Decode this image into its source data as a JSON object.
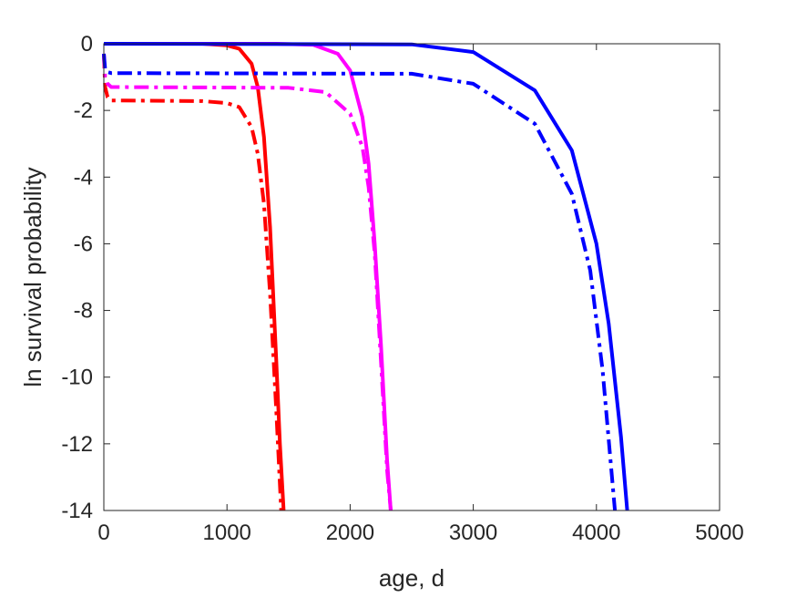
{
  "chart_data": {
    "type": "line",
    "title": "",
    "xlabel": "age, d",
    "ylabel": "ln survival probability",
    "xlim": [
      0,
      5000
    ],
    "ylim": [
      -14,
      0
    ],
    "xticks": [
      0,
      1000,
      2000,
      3000,
      4000,
      5000
    ],
    "yticks": [
      -14,
      -12,
      -10,
      -8,
      -6,
      -4,
      -2,
      0
    ],
    "xtick_labels": [
      "0",
      "1000",
      "2000",
      "3000",
      "4000",
      "5000"
    ],
    "ytick_labels": [
      "-14",
      "-12",
      "-10",
      "-8",
      "-6",
      "-4",
      "-2",
      "0"
    ],
    "grid": false,
    "legend": "none",
    "series": [
      {
        "color": "#ff0000",
        "style": "solid",
        "x": [
          0,
          800,
          1000,
          1100,
          1200,
          1250,
          1300,
          1350,
          1400,
          1430,
          1460
        ],
        "y": [
          0,
          0,
          -0.05,
          -0.15,
          -0.6,
          -1.3,
          -2.8,
          -5.5,
          -9.5,
          -12.0,
          -14.0
        ]
      },
      {
        "color": "#ff0000",
        "style": "dashdot",
        "x": [
          0,
          10,
          30,
          60,
          800,
          1000,
          1100,
          1200,
          1250,
          1300,
          1350,
          1400,
          1440
        ],
        "y": [
          -0.3,
          -1.3,
          -1.6,
          -1.7,
          -1.72,
          -1.78,
          -1.9,
          -2.5,
          -3.3,
          -4.8,
          -7.5,
          -11.0,
          -14.0
        ]
      },
      {
        "color": "#ff00ff",
        "style": "solid",
        "x": [
          0,
          1400,
          1700,
          1900,
          2000,
          2100,
          2150,
          2200,
          2250,
          2300,
          2330
        ],
        "y": [
          0,
          0,
          -0.03,
          -0.3,
          -0.8,
          -2.2,
          -3.6,
          -6.0,
          -9.0,
          -12.5,
          -14.0
        ]
      },
      {
        "color": "#ff00ff",
        "style": "dashdot",
        "x": [
          0,
          10,
          30,
          60,
          1500,
          1800,
          2000,
          2100,
          2150,
          2200,
          2250,
          2300,
          2330
        ],
        "y": [
          -0.3,
          -1.0,
          -1.2,
          -1.3,
          -1.32,
          -1.45,
          -2.1,
          -3.1,
          -4.3,
          -6.3,
          -9.5,
          -12.8,
          -14.0
        ]
      },
      {
        "color": "#0000ff",
        "style": "solid",
        "x": [
          0,
          2500,
          3000,
          3500,
          3800,
          4000,
          4100,
          4200,
          4250
        ],
        "y": [
          0,
          -0.02,
          -0.25,
          -1.4,
          -3.2,
          -6.0,
          -8.4,
          -11.8,
          -14.0
        ]
      },
      {
        "color": "#0000ff",
        "style": "dashdot",
        "x": [
          0,
          10,
          30,
          60,
          2500,
          3000,
          3500,
          3800,
          3950,
          4050,
          4150
        ],
        "y": [
          -0.3,
          -0.75,
          -0.85,
          -0.88,
          -0.9,
          -1.2,
          -2.4,
          -4.5,
          -6.8,
          -9.8,
          -14.0
        ]
      }
    ]
  }
}
